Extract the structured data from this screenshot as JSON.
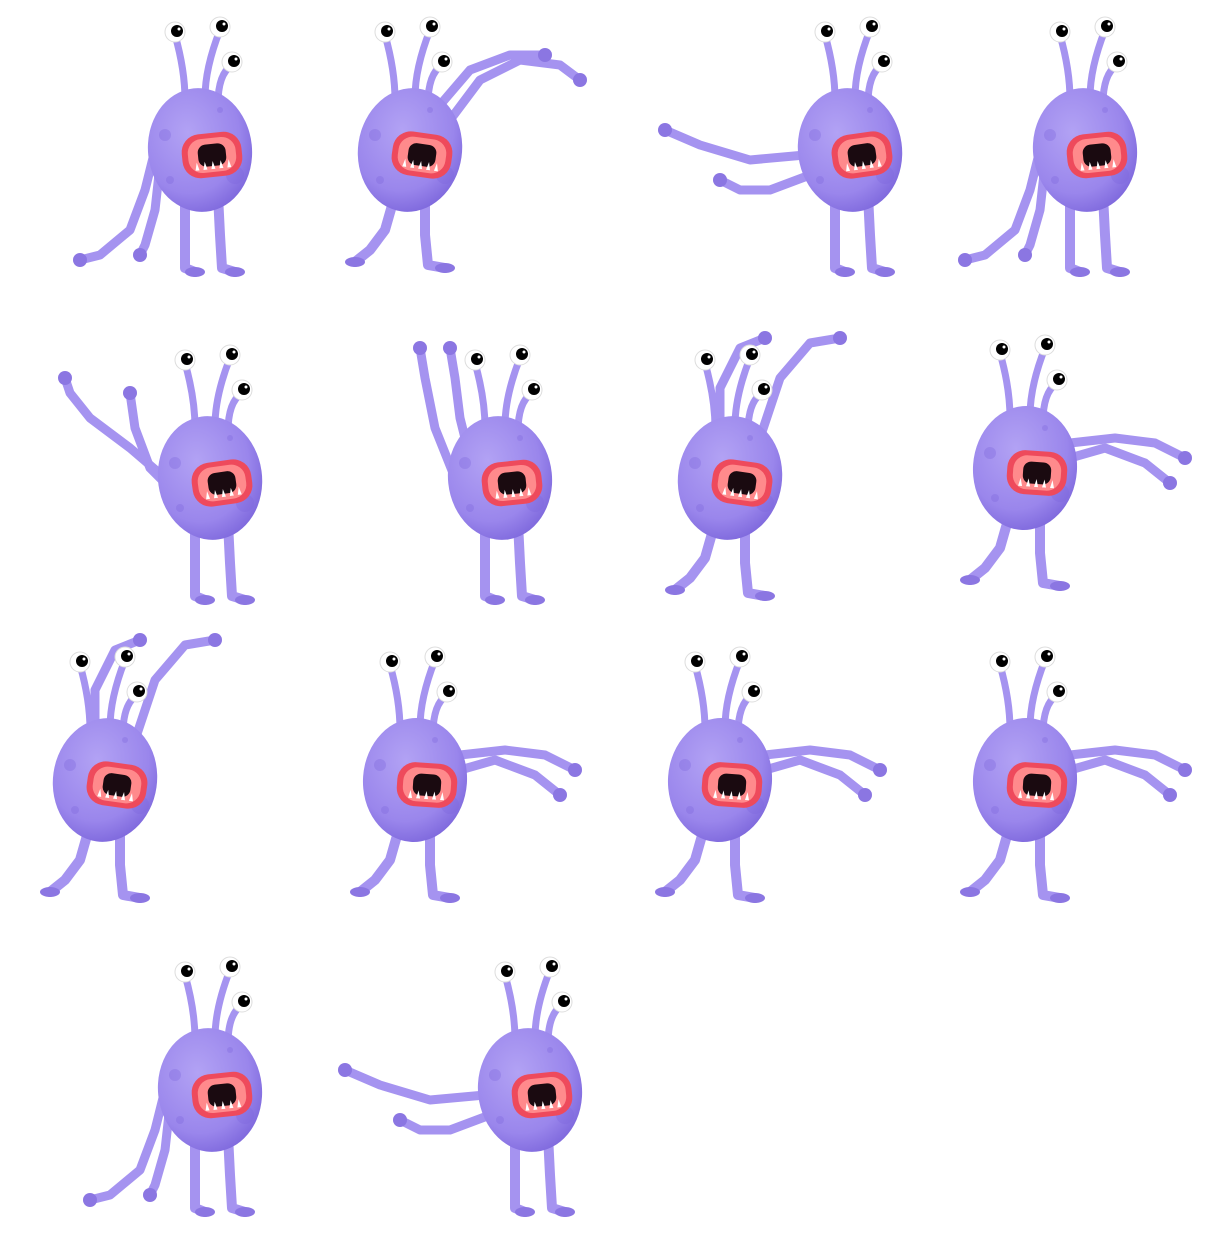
{
  "sprite_sheet": {
    "character": "purple-three-eyed-monster",
    "frame_count": 14,
    "colors": {
      "background": "#ffffff",
      "body_light": "#b2a2f4",
      "body_mid": "#9a86ec",
      "body_dark": "#7d67dc",
      "limb": "#a593f0",
      "limb_shade": "#8b76e2",
      "mouth_outer": "#ee4a5c",
      "mouth_inner": "#ff8a8c",
      "mouth_dark": "#1a0a10",
      "teeth": "#ffffff",
      "eye_white": "#ffffff",
      "pupil": "#000000"
    },
    "frames": [
      {
        "pose": "arms-down-left"
      },
      {
        "pose": "reach-up-right"
      },
      {
        "pose": "reach-left"
      },
      {
        "pose": "arms-down-left"
      },
      {
        "pose": "arms-up-left"
      },
      {
        "pose": "arms-up-high"
      },
      {
        "pose": "arms-up-right"
      },
      {
        "pose": "walk-reach-right"
      },
      {
        "pose": "arms-up-right"
      },
      {
        "pose": "walk-reach-right"
      },
      {
        "pose": "walk-reach-right"
      },
      {
        "pose": "walk-reach-right"
      },
      {
        "pose": "arms-down-left"
      },
      {
        "pose": "reach-left"
      }
    ]
  }
}
